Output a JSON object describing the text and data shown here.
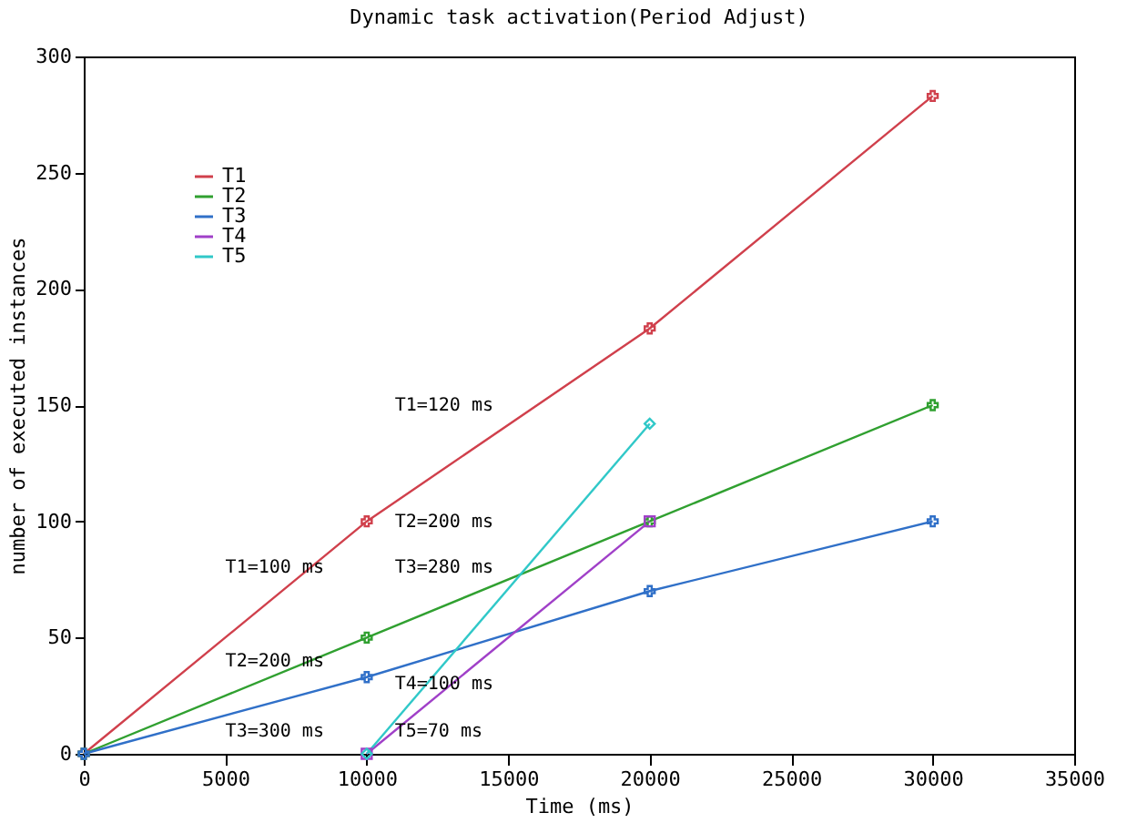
{
  "chart_data": {
    "type": "line",
    "title": "Dynamic task activation(Period Adjust)",
    "xlabel": "Time (ms)",
    "ylabel": "number of executed instances",
    "xlim": [
      0,
      35000
    ],
    "xticks": [
      0,
      5000,
      10000,
      15000,
      20000,
      25000,
      30000,
      35000
    ],
    "ylim": [
      0,
      300
    ],
    "yticks": [
      0,
      50,
      100,
      150,
      200,
      250,
      300
    ],
    "grid": false,
    "legend": "top left",
    "series": [
      {
        "name": "T1",
        "color": "#d0404c",
        "marker": "cross",
        "x": [
          0,
          10000,
          20000,
          30000
        ],
        "values": [
          0,
          100,
          183,
          283
        ]
      },
      {
        "name": "T2",
        "color": "#30a030",
        "marker": "cross",
        "x": [
          0,
          10000,
          20000,
          30000
        ],
        "values": [
          0,
          50,
          100,
          150
        ]
      },
      {
        "name": "T3",
        "color": "#3070c8",
        "marker": "cross",
        "x": [
          0,
          10000,
          20000,
          30000
        ],
        "values": [
          0,
          33,
          70,
          100
        ]
      },
      {
        "name": "T4",
        "color": "#a040c8",
        "marker": "square",
        "x": [
          10000,
          20000
        ],
        "values": [
          0,
          100
        ]
      },
      {
        "name": "T5",
        "color": "#30c8c8",
        "marker": "diamond",
        "x": [
          10000,
          20000
        ],
        "values": [
          0,
          142
        ]
      }
    ],
    "annotations": [
      "T1=120 ms",
      "T1=100 ms",
      "T2=200 ms",
      "T3=280 ms",
      "T2=200 ms",
      "T4=100 ms",
      "T3=300 ms",
      "T5=70 ms"
    ]
  }
}
